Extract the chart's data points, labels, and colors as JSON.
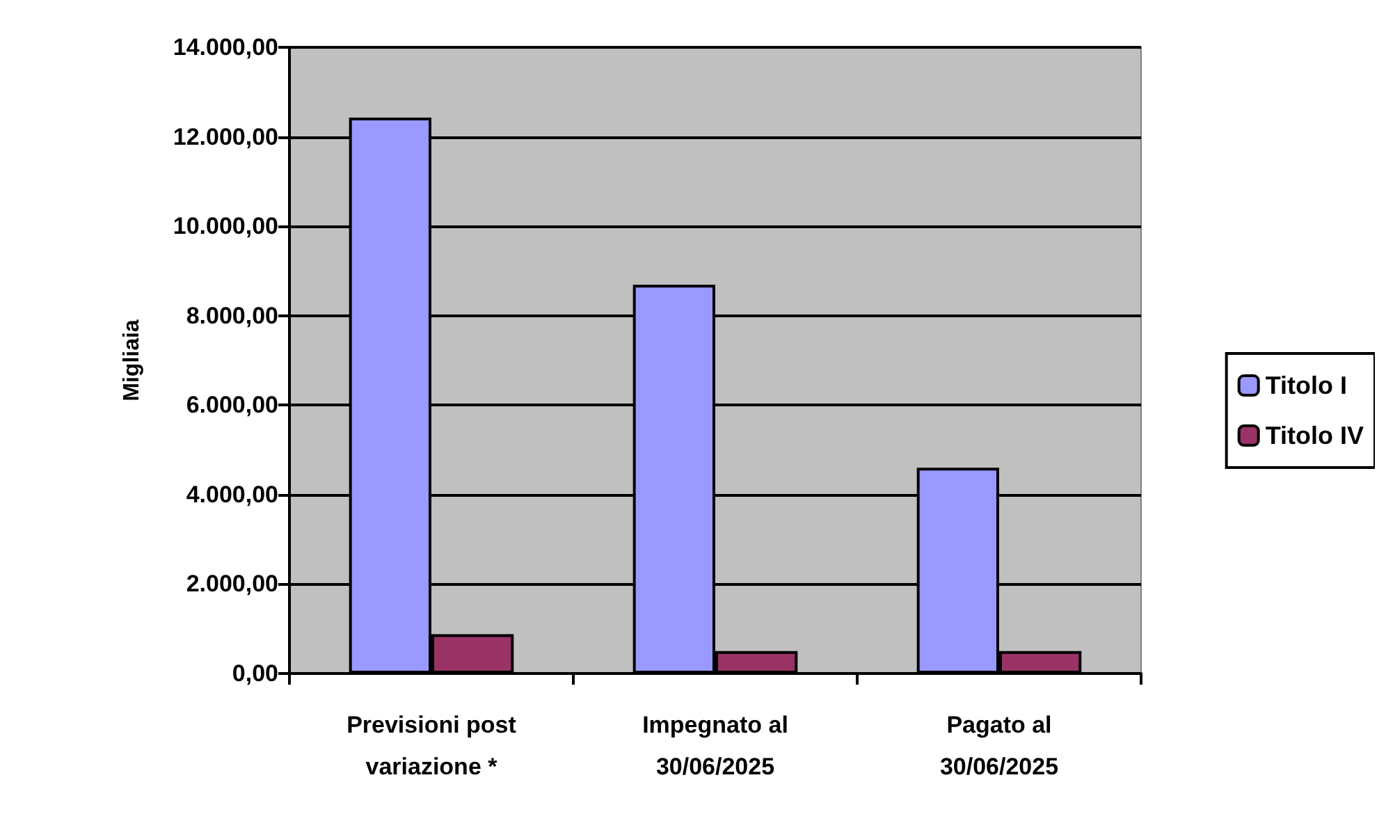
{
  "chart_data": {
    "type": "bar",
    "ylabel": "Migliaia",
    "categories": [
      "Previsioni post\nvariazione *",
      "Impegnato al\n30/06/2025",
      "Pagato al\n30/06/2025"
    ],
    "series": [
      {
        "name": "Titolo I",
        "color": "#9999ff",
        "values": [
          12430,
          8690,
          4600
        ]
      },
      {
        "name": "Titolo IV",
        "color": "#993366",
        "values": [
          880,
          500,
          500
        ]
      }
    ],
    "ylim": [
      0,
      14000
    ],
    "yticks": [
      {
        "value": 0,
        "label": "0,00"
      },
      {
        "value": 2000,
        "label": "2.000,00"
      },
      {
        "value": 4000,
        "label": "4.000,00"
      },
      {
        "value": 6000,
        "label": "6.000,00"
      },
      {
        "value": 8000,
        "label": "8.000,00"
      },
      {
        "value": 10000,
        "label": "10.000,00"
      },
      {
        "value": 12000,
        "label": "12.000,00"
      },
      {
        "value": 14000,
        "label": "14.000,00"
      }
    ],
    "grid": "y",
    "legend": "right"
  }
}
